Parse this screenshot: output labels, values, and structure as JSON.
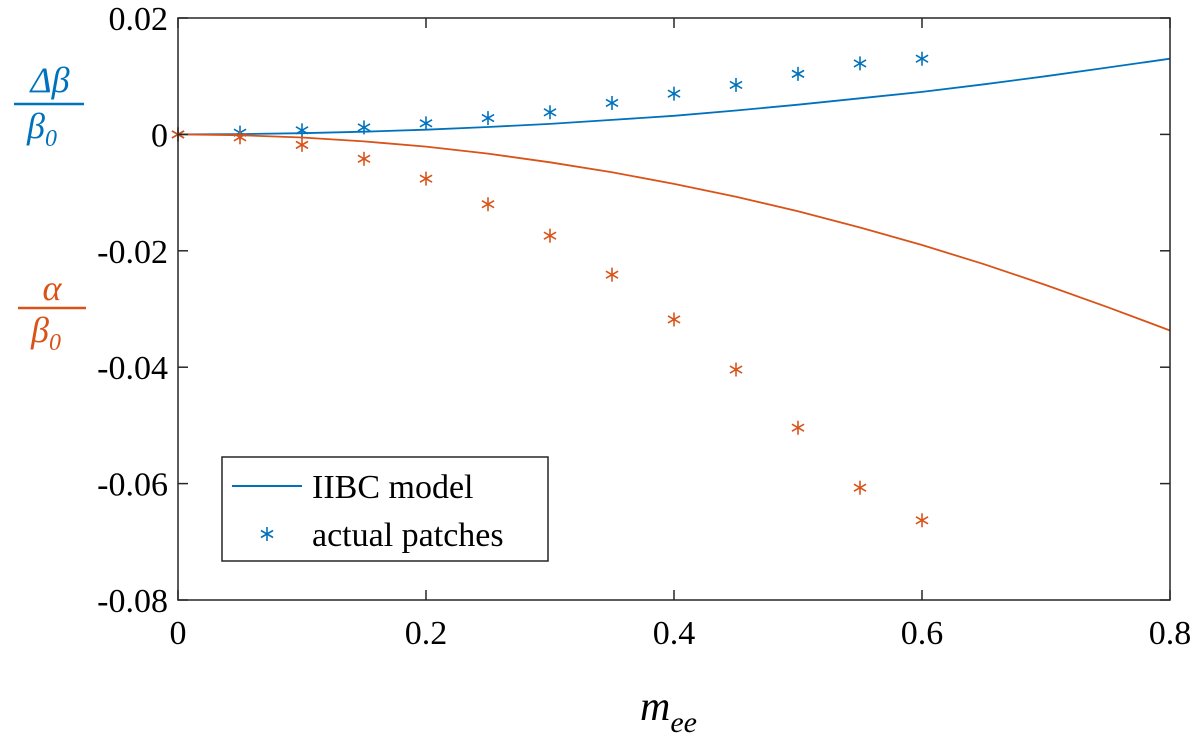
{
  "chart_data": {
    "type": "line",
    "xlabel": {
      "main": "m",
      "sub": "ee"
    },
    "ylabel_top": {
      "numerator": "Δβ",
      "denominator_main": "β",
      "denominator_sub": "0",
      "color": "#0072BD"
    },
    "ylabel_bottom": {
      "numerator": "α",
      "denominator_main": "β",
      "denominator_sub": "0",
      "color": "#D95319"
    },
    "xlim": [
      0,
      0.8
    ],
    "ylim": [
      -0.08,
      0.02
    ],
    "xticks": [
      0,
      0.2,
      0.4,
      0.6,
      0.8
    ],
    "xtick_labels": [
      "0",
      "0.2",
      "0.4",
      "0.6",
      "0.8"
    ],
    "yticks": [
      -0.08,
      -0.06,
      -0.04,
      -0.02,
      0,
      0.02
    ],
    "ytick_labels": [
      "-0.08",
      "-0.06",
      "-0.04",
      "-0.02",
      "0",
      "0.02"
    ],
    "grid": false,
    "legend": {
      "placement": "bottom-left",
      "entries": [
        {
          "label": "IIBC model",
          "marker": "line",
          "color": "#0072BD"
        },
        {
          "label": "actual patches",
          "marker": "asterisk",
          "color": "#0072BD"
        }
      ]
    },
    "series": [
      {
        "kind": "line",
        "color": "#0072BD",
        "x": [
          0,
          0.05,
          0.1,
          0.15,
          0.2,
          0.25,
          0.3,
          0.35,
          0.4,
          0.45,
          0.5,
          0.55,
          0.6,
          0.65,
          0.7,
          0.75,
          0.8
        ],
        "y": [
          0,
          5e-05,
          0.0002,
          0.00046,
          0.0008,
          0.00127,
          0.0018,
          0.0025,
          0.0032,
          0.0041,
          0.0051,
          0.0062,
          0.0073,
          0.0086,
          0.01,
          0.0115,
          0.013
        ]
      },
      {
        "kind": "scatter",
        "color": "#0072BD",
        "x": [
          0,
          0.05,
          0.1,
          0.15,
          0.2,
          0.25,
          0.3,
          0.35,
          0.4,
          0.45,
          0.5,
          0.55,
          0.6
        ],
        "y": [
          0,
          0.0003,
          0.0007,
          0.0012,
          0.0019,
          0.0028,
          0.0038,
          0.0054,
          0.007,
          0.0085,
          0.0104,
          0.0122,
          0.013
        ]
      },
      {
        "kind": "line",
        "color": "#D95319",
        "x": [
          0,
          0.05,
          0.1,
          0.15,
          0.2,
          0.25,
          0.3,
          0.35,
          0.4,
          0.45,
          0.5,
          0.55,
          0.6,
          0.65,
          0.7,
          0.75,
          0.8
        ],
        "y": [
          0,
          -0.00013,
          -0.00053,
          -0.0012,
          -0.0021,
          -0.0033,
          -0.0048,
          -0.0065,
          -0.0085,
          -0.0107,
          -0.0132,
          -0.016,
          -0.019,
          -0.0223,
          -0.0259,
          -0.0297,
          -0.0337
        ]
      },
      {
        "kind": "scatter",
        "color": "#D95319",
        "x": [
          0,
          0.05,
          0.1,
          0.15,
          0.2,
          0.25,
          0.3,
          0.35,
          0.4,
          0.45,
          0.5,
          0.55,
          0.6
        ],
        "y": [
          0,
          -0.0005,
          -0.0018,
          -0.0042,
          -0.0076,
          -0.012,
          -0.0174,
          -0.0241,
          -0.0318,
          -0.0404,
          -0.0504,
          -0.0607,
          -0.0663
        ]
      }
    ]
  }
}
